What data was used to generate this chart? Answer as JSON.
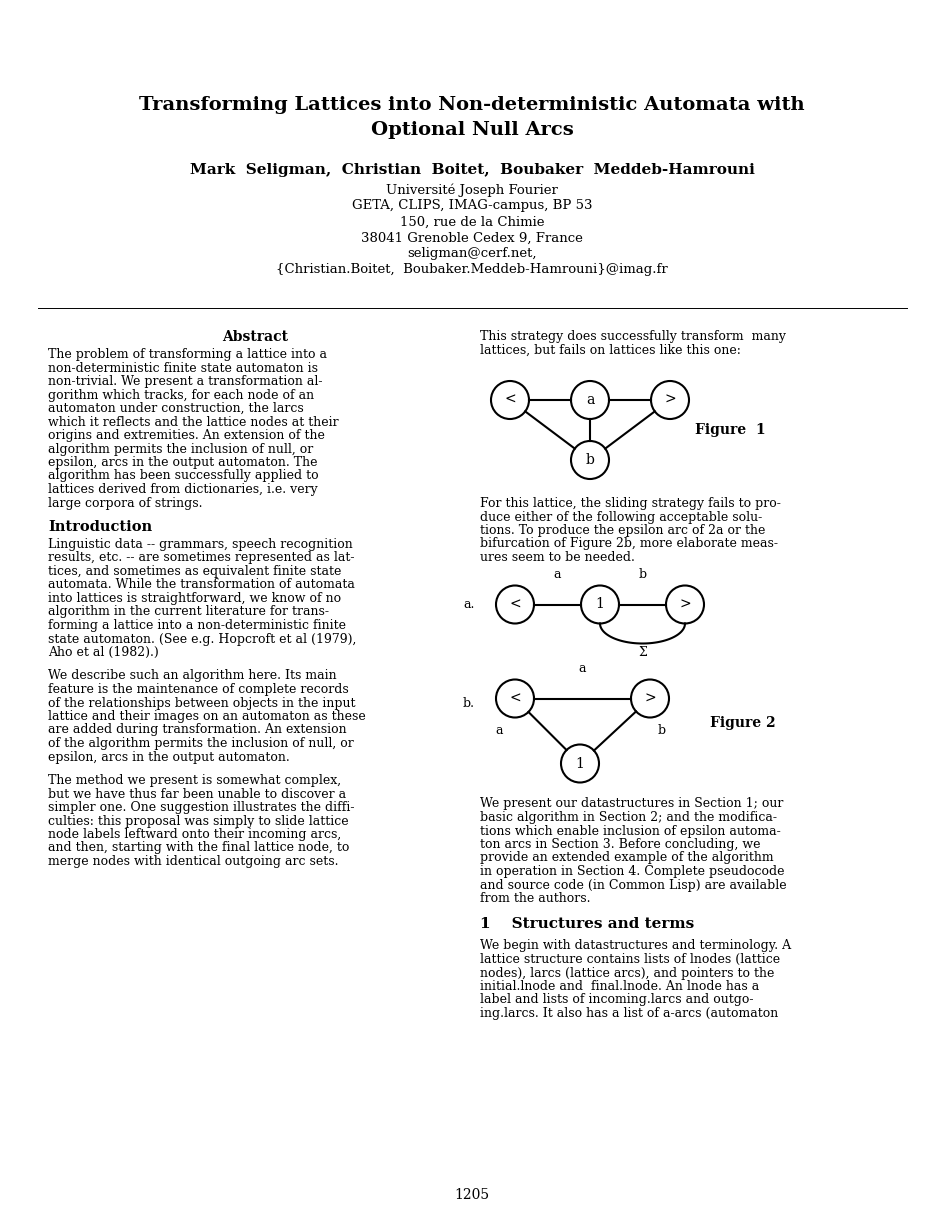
{
  "bg_color": "#ffffff",
  "title_line1": "Transforming Lattices into Non-deterministic Automata with",
  "title_line2": "Optional Null Arcs",
  "authors": "Mark  Seligman,  Christian  Boitet,  Boubaker  Meddeb-Hamrouni",
  "affil1": "Université Joseph Fourier",
  "affil2": "GETA, CLIPS, IMAG-campus, BP 53",
  "affil3": "150, rue de la Chimie",
  "affil4": "38041 Grenoble Cedex 9, France",
  "affil5": "seligman@cerf.net,",
  "affil6": "{Christian.Boitet,  Boubaker.Meddeb-Hamrouni}@imag.fr",
  "abstract_title": "Abstract",
  "abstract_lines": [
    "The problem of transforming a lattice into a",
    "non-deterministic finite state automaton is",
    "non-trivial. We present a transformation al-",
    "gorithm which tracks, for each node of an",
    "automaton under construction, the larcs",
    "which it reflects and the lattice nodes at their",
    "origins and extremities. An extension of the",
    "algorithm permits the inclusion of null, or",
    "epsilon, arcs in the output automaton. The",
    "algorithm has been successfully applied to",
    "lattices derived from dictionaries, i.e. very",
    "large corpora of strings."
  ],
  "intro_title": "Introduction",
  "intro1_lines": [
    "Linguistic data -- grammars, speech recognition",
    "results, etc. -- are sometimes represented as lat-",
    "tices, and sometimes as equivalent finite state",
    "automata. While the transformation of automata",
    "into lattices is straightforward, we know of no",
    "algorithm in the current literature for trans-",
    "forming a lattice into a non-deterministic finite",
    "state automaton. (See e.g. Hopcroft et al (1979),",
    "Aho et al (1982).)"
  ],
  "intro2_lines": [
    "We describe such an algorithm here. Its main",
    "feature is the maintenance of complete records",
    "of the relationships between objects in the input",
    "lattice and their images on an automaton as these",
    "are added during transformation. An extension",
    "of the algorithm permits the inclusion of null, or",
    "epsilon, arcs in the output automaton."
  ],
  "intro3_lines": [
    "The method we present is somewhat complex,",
    "but we have thus far been unable to discover a",
    "simpler one. One suggestion illustrates the diffi-",
    "culties: this proposal was simply to slide lattice",
    "node labels leftward onto their incoming arcs,",
    "and then, starting with the final lattice node, to",
    "merge nodes with identical outgoing arc sets."
  ],
  "right1_lines": [
    "This strategy does successfully transform  many",
    "lattices, but fails on lattices like this one:"
  ],
  "fig1_caption": "Figure  1",
  "right2_lines": [
    "For this lattice, the sliding strategy fails to pro-",
    "duce either of the following acceptable solu-",
    "tions. To produce the epsilon arc of 2a or the",
    "bifurcation of Figure 2b, more elaborate meas-",
    "ures seem to be needed."
  ],
  "fig2_label_a": "a.",
  "fig2_label_b": "b.",
  "fig2_caption": "Figure 2",
  "right3_lines": [
    "We present our datastructures in Section 1; our",
    "basic algorithm in Section 2; and the modifica-",
    "tions which enable inclusion of epsilon automa-",
    "ton arcs in Section 3. Before concluding, we",
    "provide an extended example of the algorithm",
    "in operation in Section 4. Complete pseudocode",
    "and source code (in Common Lisp) are available",
    "from the authors."
  ],
  "sect1_title": "1    Structures and terms",
  "sect1_lines": [
    "We begin with datastructures and terminology. A",
    "lattice structure contains lists of lnodes (lattice",
    "nodes), larcs (lattice arcs), and pointers to the",
    "initial.lnode and  final.lnode. An lnode has a",
    "label and lists of incoming.larcs and outgo-",
    "ing.larcs. It also has a list of a-arcs (automaton"
  ],
  "page_num": "1205"
}
